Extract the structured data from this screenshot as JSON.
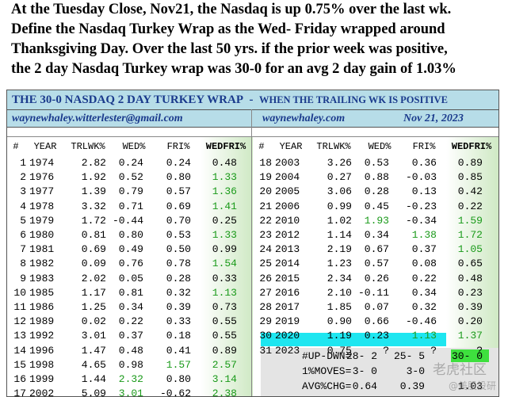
{
  "intro": [
    "At the Tuesday Close, Nov21, the Nasdaq is up 0.75% over the last wk.",
    "Define the Nasdaq Turkey Wrap as the Wed- Friday wrapped around",
    "Thanksgiving Day.  Over the last 50 yrs. if the prior week was positive,",
    "the 2 day Nasdaq Turkey wrap was 30-0 for an avg 2 day gain of 1.03%"
  ],
  "table": {
    "title": "THE 30-0 NASDAQ 2 DAY TURKEY WRAP",
    "separator": "-",
    "subtitle": "WHEN THE TRAILING WK IS POSITIVE",
    "email": "waynewhaley.witterlester@gmail.com",
    "website": "waynewhaley.com",
    "date": "Nov 21, 2023",
    "columns": [
      "#",
      "YEAR",
      "TRLWK%",
      "WED%",
      "FRI%",
      "WEDFRI%"
    ],
    "rows": [
      [
        "1",
        "1974",
        "2.82",
        "0.24",
        "0.24",
        "0.48"
      ],
      [
        "2",
        "1976",
        "1.92",
        "0.52",
        "0.80",
        "1.33"
      ],
      [
        "3",
        "1977",
        "1.39",
        "0.79",
        "0.57",
        "1.36"
      ],
      [
        "4",
        "1978",
        "3.32",
        "0.71",
        "0.69",
        "1.41"
      ],
      [
        "5",
        "1979",
        "1.72",
        "-0.44",
        "0.70",
        "0.25"
      ],
      [
        "6",
        "1980",
        "0.81",
        "0.80",
        "0.53",
        "1.33"
      ],
      [
        "7",
        "1981",
        "0.69",
        "0.49",
        "0.50",
        "0.99"
      ],
      [
        "8",
        "1982",
        "0.09",
        "0.76",
        "0.78",
        "1.54"
      ],
      [
        "9",
        "1983",
        "2.02",
        "0.05",
        "0.28",
        "0.33"
      ],
      [
        "10",
        "1985",
        "1.17",
        "0.81",
        "0.32",
        "1.13"
      ],
      [
        "11",
        "1986",
        "1.25",
        "0.34",
        "0.39",
        "0.73"
      ],
      [
        "12",
        "1989",
        "0.02",
        "0.22",
        "0.33",
        "0.55"
      ],
      [
        "13",
        "1992",
        "3.01",
        "0.37",
        "0.18",
        "0.55"
      ],
      [
        "14",
        "1996",
        "1.47",
        "0.48",
        "0.41",
        "0.89"
      ],
      [
        "15",
        "1998",
        "4.65",
        "0.98",
        "1.57",
        "2.57"
      ],
      [
        "16",
        "1999",
        "1.44",
        "2.32",
        "0.80",
        "3.14"
      ],
      [
        "17",
        "2002",
        "5.09",
        "3.01",
        "-0.62",
        "2.38"
      ],
      [
        "18",
        "2003",
        "3.26",
        "0.53",
        "0.36",
        "0.89"
      ],
      [
        "19",
        "2004",
        "0.27",
        "0.88",
        "-0.03",
        "0.85"
      ],
      [
        "20",
        "2005",
        "3.06",
        "0.28",
        "0.13",
        "0.42"
      ],
      [
        "21",
        "2006",
        "0.99",
        "0.45",
        "-0.23",
        "0.22"
      ],
      [
        "22",
        "2010",
        "1.02",
        "1.93",
        "-0.34",
        "1.59"
      ],
      [
        "23",
        "2012",
        "1.14",
        "0.34",
        "1.38",
        "1.72"
      ],
      [
        "24",
        "2013",
        "2.19",
        "0.67",
        "0.37",
        "1.05"
      ],
      [
        "25",
        "2014",
        "1.23",
        "0.57",
        "0.08",
        "0.65"
      ],
      [
        "26",
        "2015",
        "2.34",
        "0.26",
        "0.22",
        "0.48"
      ],
      [
        "27",
        "2016",
        "2.10",
        "-0.11",
        "0.34",
        "0.23"
      ],
      [
        "28",
        "2017",
        "1.85",
        "0.07",
        "0.32",
        "0.39"
      ],
      [
        "29",
        "2019",
        "0.90",
        "0.66",
        "-0.46",
        "0.20"
      ],
      [
        "30",
        "2020",
        "1.19",
        "0.23",
        "1.13",
        "1.37"
      ],
      [
        "31",
        "2023",
        "0.75",
        "?",
        "?",
        "?"
      ]
    ],
    "summary": [
      {
        "label": "#UP-DWN=",
        "values": [
          "28- 2",
          "25- 5",
          "30- 0"
        ]
      },
      {
        "label": "1%MOVES=",
        "values": [
          "3- 0",
          "3-0"
        ]
      },
      {
        "label": "AVG%CHG=",
        "values": [
          "0.64",
          "0.39",
          "1.03"
        ]
      }
    ]
  },
  "watermark": [
    "老虎社区",
    "@美股投研"
  ]
}
